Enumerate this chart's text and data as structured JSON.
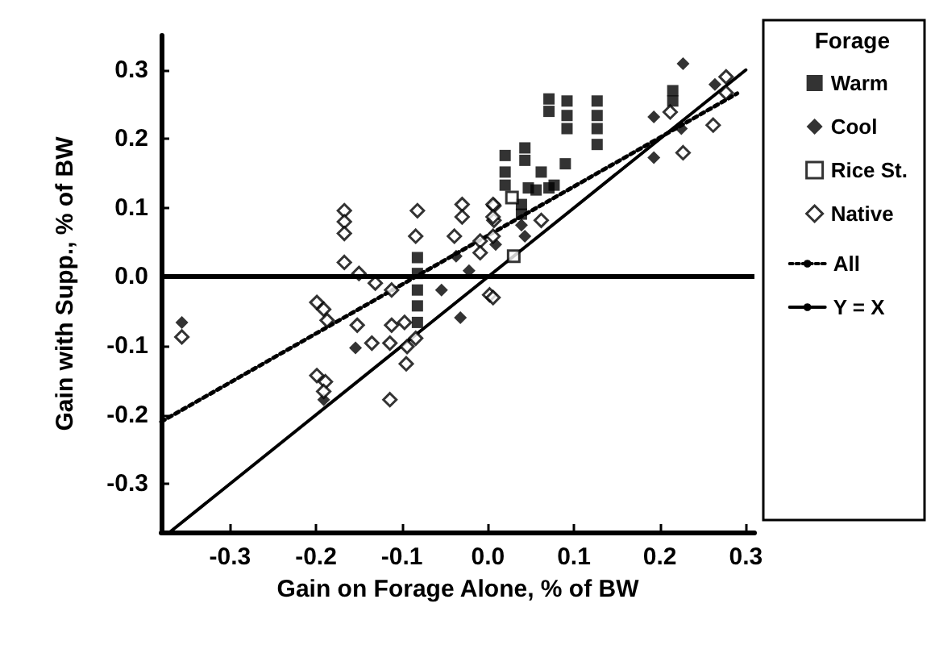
{
  "chart_data": {
    "type": "scatter",
    "xlabel": "Gain on Forage Alone, % of BW",
    "ylabel": "Gain with Supp., % of BW",
    "legend_title": "Forage",
    "xlim": [
      -0.38,
      0.31
    ],
    "ylim": [
      -0.37,
      0.35
    ],
    "xticks": [
      -0.3,
      -0.2,
      -0.1,
      {
        "value": 0,
        "label": "0.0"
      },
      0.1,
      0.2,
      0.3
    ],
    "yticks": [
      -0.3,
      -0.2,
      -0.1,
      {
        "value": 0,
        "label": "0.0"
      },
      0.1,
      0.2,
      0.3
    ],
    "grid": false,
    "legend": "right",
    "ref_lines": [
      {
        "axis": "y",
        "value": 0,
        "color": "#000000",
        "line_style": "solid"
      }
    ],
    "series": [
      {
        "name": "Warm",
        "color": "#000000",
        "marker": "square",
        "x": [
          0.071,
          0.071,
          0.092,
          0.092,
          0.092,
          0.127,
          0.127,
          0.127,
          0.127,
          0.02,
          0.02,
          0.02,
          0.043,
          0.043,
          0.062,
          0.09,
          0.047,
          0.056,
          0.071,
          0.077,
          0.039,
          0.039,
          0.215,
          0.215,
          -0.082,
          -0.082,
          -0.082,
          -0.082,
          -0.082
        ],
        "values": [
          0.258,
          0.24,
          0.255,
          0.234,
          0.215,
          0.255,
          0.234,
          0.215,
          0.192,
          0.176,
          0.152,
          0.133,
          0.187,
          0.169,
          0.152,
          0.164,
          0.129,
          0.126,
          0.129,
          0.133,
          0.105,
          0.091,
          0.27,
          0.255,
          0.028,
          0.005,
          -0.019,
          -0.042,
          -0.066
        ]
      },
      {
        "name": "Cool",
        "color": "#000000",
        "marker": "diamond",
        "x": [
          -0.356,
          -0.154,
          -0.032,
          -0.054,
          -0.037,
          -0.022,
          -0.191,
          0.227,
          0.193,
          0.193,
          0.225,
          0.264,
          0.039,
          0.043,
          0.009
        ],
        "values": [
          -0.066,
          -0.103,
          -0.059,
          -0.019,
          0.03,
          0.009,
          -0.178,
          0.309,
          0.232,
          0.173,
          0.215,
          0.279,
          0.075,
          0.059,
          0.047
        ]
      },
      {
        "name": "Rice St.",
        "color": "#ffffff",
        "marker": "square",
        "x": [
          0.03,
          0.028
        ],
        "values": [
          0.03,
          0.115
        ]
      },
      {
        "name": "Native",
        "color": "#ffffff",
        "marker": "diamond",
        "x": [
          -0.167,
          -0.167,
          -0.167,
          -0.167,
          -0.15,
          -0.356,
          -0.199,
          -0.191,
          -0.187,
          -0.199,
          -0.189,
          -0.191,
          -0.152,
          -0.135,
          -0.112,
          -0.114,
          -0.114,
          -0.131,
          -0.112,
          -0.097,
          -0.094,
          -0.095,
          -0.084,
          -0.082,
          -0.084,
          -0.039,
          -0.03,
          -0.03,
          -0.009,
          -0.009,
          0.007,
          0.007,
          0.002,
          0.006,
          0.006,
          0.006,
          0.006,
          0.062,
          0.262,
          0.277,
          0.227,
          0.277,
          0.212
        ],
        "values": [
          0.096,
          0.08,
          0.063,
          0.021,
          0.005,
          -0.087,
          -0.037,
          -0.047,
          -0.063,
          -0.143,
          -0.152,
          -0.166,
          -0.07,
          -0.096,
          -0.07,
          -0.096,
          -0.178,
          -0.009,
          -0.019,
          -0.066,
          -0.101,
          -0.126,
          -0.089,
          0.096,
          0.059,
          0.059,
          0.105,
          0.087,
          0.052,
          0.035,
          0.103,
          0.082,
          -0.026,
          0.105,
          0.087,
          0.059,
          -0.03,
          0.082,
          0.22,
          0.267,
          0.18,
          0.29,
          0.239
        ]
      },
      {
        "name": "All",
        "type": "line",
        "color": "#000000",
        "line_style": "dotted",
        "marker": "none",
        "x": [
          -0.38,
          0.29
        ],
        "values": [
          -0.21,
          0.266
        ]
      },
      {
        "name": "Y = X",
        "type": "line",
        "color": "#000000",
        "line_style": "solid",
        "marker": "none",
        "x": [
          -0.37,
          0.3
        ],
        "values": [
          -0.37,
          0.3
        ]
      }
    ]
  }
}
